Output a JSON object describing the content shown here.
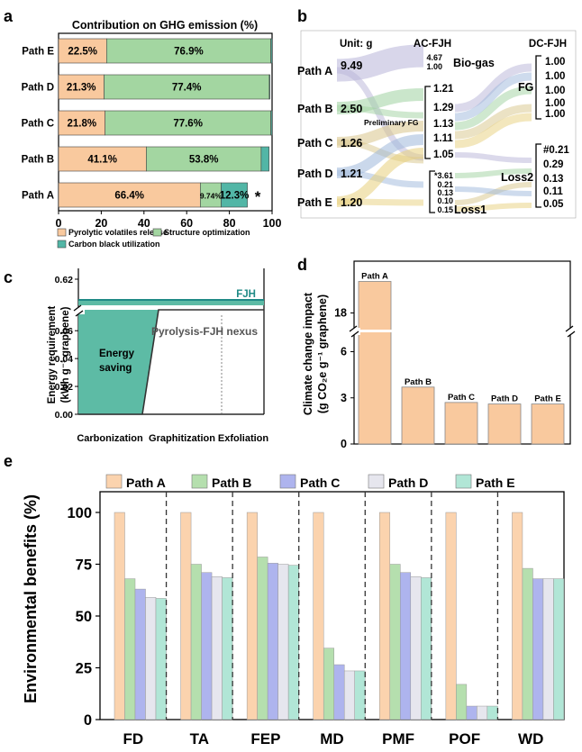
{
  "chart_data": [
    {
      "panel": "a",
      "type": "bar",
      "orientation": "horizontal",
      "stacked": true,
      "title": "Contribution on GHG emission (%)",
      "categories": [
        "Path E",
        "Path D",
        "Path C",
        "Path B",
        "Path A"
      ],
      "series": [
        {
          "name": "Pyrolytic volatiles release",
          "color": "#f9c99e",
          "values": [
            22.5,
            21.3,
            21.8,
            41.1,
            66.4
          ],
          "labels": [
            "22.5%",
            "21.3%",
            "21.8%",
            "41.1%",
            "66.4%"
          ]
        },
        {
          "name": "Structure optimization",
          "color": "#a3d6a1",
          "values": [
            76.9,
            77.4,
            77.6,
            53.8,
            9.74
          ],
          "labels": [
            "76.9%",
            "77.4%",
            "77.6%",
            "53.8%",
            "9.74%"
          ]
        },
        {
          "name": "Carbon black utilization",
          "color": "#52b6a6",
          "values": [
            0.6,
            0.3,
            0.6,
            3.7,
            12.3
          ],
          "labels": [
            "",
            "",
            "",
            "",
            "12.3%"
          ]
        }
      ],
      "xlim": [
        0,
        100
      ],
      "xticks": [
        "0",
        "20",
        "40",
        "60",
        "80",
        "100"
      ],
      "annotation": "*"
    },
    {
      "panel": "b",
      "type": "sankey",
      "unit_label": "Unit: g",
      "left_nodes": [
        {
          "name": "Path A",
          "value": 9.49,
          "label": "9.49",
          "color": "#b8b4d8"
        },
        {
          "name": "Path B",
          "value": 2.5,
          "label": "2.50",
          "color": "#9fd1a0"
        },
        {
          "name": "Path C",
          "value": 1.26,
          "label": "1.26",
          "color": "#d8c58a"
        },
        {
          "name": "Path D",
          "value": 1.21,
          "label": "1.21",
          "color": "#9eb8db"
        },
        {
          "name": "Path E",
          "value": 1.2,
          "label": "1.20",
          "color": "#e8d07c"
        }
      ],
      "middle_header": "AC-FJH",
      "right_header": "DC-FJH",
      "middle_groups": [
        {
          "name": "Bio-gas",
          "values": [
            "4.67",
            "1.00"
          ]
        },
        {
          "name": "Preliminary FG",
          "values": [
            "1.21",
            "1.29",
            "1.13",
            "1.11",
            "1.05"
          ]
        },
        {
          "name": "Loss1",
          "values": [
            "*3.61",
            "0.21",
            "0.13",
            "0.10",
            "0.15"
          ]
        }
      ],
      "right_groups": [
        {
          "name": "FG",
          "values": [
            "1.00",
            "1.00",
            "1.00",
            "1.00",
            "1.00"
          ]
        },
        {
          "name": "Loss2",
          "values": [
            "#0.21",
            "0.29",
            "0.13",
            "0.11",
            "0.05"
          ]
        }
      ]
    },
    {
      "panel": "c",
      "type": "step",
      "ylabel_line1": "Energy requirement",
      "ylabel_line2": "(kWh g⁻¹ graphene)",
      "yticks": [
        "0.00",
        "0.02",
        "0.04",
        "0.06",
        "0.62"
      ],
      "stages": [
        "Carbonization",
        "Graphitization",
        "Exfoliation"
      ],
      "fjh_label": "FJH",
      "fjh_value": 0.62,
      "nexus_label": "Pyrolysis-FJH nexus",
      "saving_label_1": "Energy",
      "saving_label_2": "saving",
      "nexus_step_values": [
        0.0,
        0.075
      ]
    },
    {
      "panel": "d",
      "type": "bar",
      "ylabel_line1": "Climate change impact",
      "ylabel_line2": "(g CO₂e g⁻¹ graphene)",
      "categories": [
        "Path A",
        "Path B",
        "Path C",
        "Path D",
        "Path E"
      ],
      "values": [
        19.0,
        3.7,
        2.7,
        2.6,
        2.6
      ],
      "yticks": [
        "0",
        "3",
        "6",
        "18"
      ],
      "ylim_lower": [
        0,
        7.2
      ],
      "ylim_upper": [
        17.5,
        19.5
      ],
      "color": "#f9c99e"
    },
    {
      "panel": "e",
      "type": "bar",
      "ylabel": "Environmental benefits (%)",
      "categories": [
        "FD",
        "TA",
        "FEP",
        "MD",
        "PMF",
        "POF",
        "WD"
      ],
      "series": [
        {
          "name": "Path A",
          "color": "#fbd3ae",
          "values": [
            100,
            100,
            100,
            100,
            100,
            100,
            100
          ]
        },
        {
          "name": "Path B",
          "color": "#b5dfae",
          "values": [
            68,
            75,
            78.5,
            34.5,
            75,
            17,
            73
          ]
        },
        {
          "name": "Path C",
          "color": "#aeb4ee",
          "values": [
            63,
            71,
            75.5,
            26.5,
            71,
            6.5,
            68
          ]
        },
        {
          "name": "Path D",
          "color": "#e6e6ee",
          "values": [
            59,
            69,
            75,
            23.5,
            69,
            6.5,
            68
          ]
        },
        {
          "name": "Path E",
          "color": "#b1e6d6",
          "values": [
            58.5,
            68.5,
            74.5,
            23.5,
            68.5,
            6.5,
            68
          ]
        }
      ],
      "ylim": [
        0,
        110
      ],
      "yticks": [
        "0",
        "25",
        "50",
        "75",
        "100"
      ]
    }
  ],
  "panel_labels": [
    "a",
    "b",
    "c",
    "d",
    "e"
  ]
}
